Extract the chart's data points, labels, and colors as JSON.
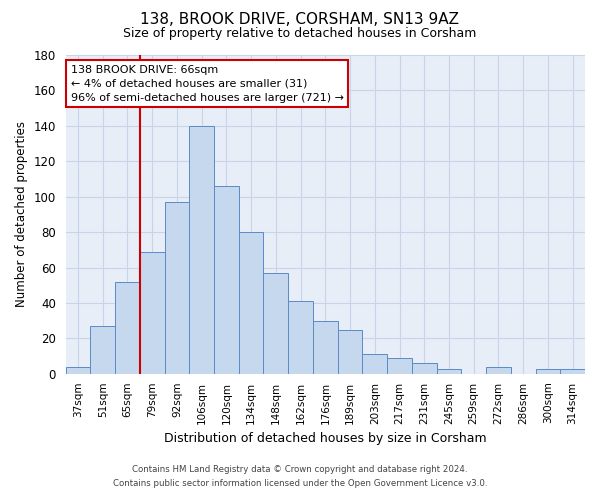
{
  "title": "138, BROOK DRIVE, CORSHAM, SN13 9AZ",
  "subtitle": "Size of property relative to detached houses in Corsham",
  "xlabel": "Distribution of detached houses by size in Corsham",
  "ylabel": "Number of detached properties",
  "bar_labels": [
    "37sqm",
    "51sqm",
    "65sqm",
    "79sqm",
    "92sqm",
    "106sqm",
    "120sqm",
    "134sqm",
    "148sqm",
    "162sqm",
    "176sqm",
    "189sqm",
    "203sqm",
    "217sqm",
    "231sqm",
    "245sqm",
    "259sqm",
    "272sqm",
    "286sqm",
    "300sqm",
    "314sqm"
  ],
  "bar_values": [
    4,
    27,
    52,
    69,
    97,
    140,
    106,
    80,
    57,
    41,
    30,
    25,
    11,
    9,
    6,
    3,
    0,
    4,
    0,
    3,
    3
  ],
  "bar_color": "#c5d8ee",
  "bar_edge_color": "#5b8ac5",
  "highlight_color": "#cc0000",
  "ylim": [
    0,
    180
  ],
  "yticks": [
    0,
    20,
    40,
    60,
    80,
    100,
    120,
    140,
    160,
    180
  ],
  "annotation_title": "138 BROOK DRIVE: 66sqm",
  "annotation_line1": "← 4% of detached houses are smaller (31)",
  "annotation_line2": "96% of semi-detached houses are larger (721) →",
  "annotation_box_color": "#cc0000",
  "footer_line1": "Contains HM Land Registry data © Crown copyright and database right 2024.",
  "footer_line2": "Contains public sector information licensed under the Open Government Licence v3.0.",
  "grid_color": "#c8d4e8",
  "background_color": "#e8eef8"
}
